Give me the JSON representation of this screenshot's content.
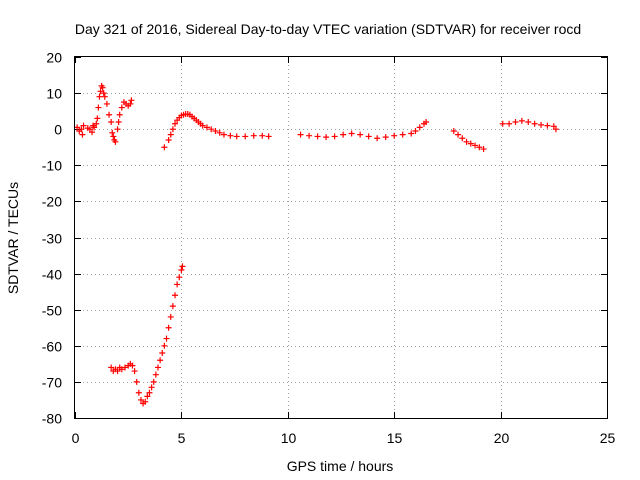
{
  "chart_data": {
    "type": "scatter",
    "title": "Day 321 of 2016, Sidereal Day-to-day VTEC variation (SDTVAR) for receiver rocd",
    "xlabel": "GPS time / hours",
    "ylabel": "SDTVAR / TECUs",
    "xlim": [
      0,
      25
    ],
    "ylim": [
      -80,
      20
    ],
    "x_ticks": [
      0,
      5,
      10,
      15,
      20,
      25
    ],
    "y_ticks": [
      20,
      10,
      0,
      -10,
      -20,
      -30,
      -40,
      -50,
      -60,
      -70,
      -80
    ],
    "grid": true,
    "marker": "+",
    "color": "#ff0000",
    "series": [
      {
        "name": "SDTVAR",
        "points": [
          [
            0.1,
            0.5
          ],
          [
            0.2,
            -0.5
          ],
          [
            0.3,
            0
          ],
          [
            0.35,
            -1.5
          ],
          [
            0.4,
            1
          ],
          [
            0.6,
            0.3
          ],
          [
            0.7,
            0
          ],
          [
            0.8,
            -0.8
          ],
          [
            0.85,
            1
          ],
          [
            0.9,
            0.5
          ],
          [
            1.0,
            1.5
          ],
          [
            1.05,
            3
          ],
          [
            1.1,
            6
          ],
          [
            1.15,
            9
          ],
          [
            1.2,
            10.5
          ],
          [
            1.25,
            12
          ],
          [
            1.3,
            11.5
          ],
          [
            1.35,
            10
          ],
          [
            1.4,
            9
          ],
          [
            1.5,
            7
          ],
          [
            1.6,
            4
          ],
          [
            1.7,
            2
          ],
          [
            1.75,
            -1
          ],
          [
            1.8,
            -2
          ],
          [
            1.85,
            -3
          ],
          [
            1.9,
            -3.5
          ],
          [
            2.0,
            0
          ],
          [
            2.05,
            2
          ],
          [
            2.1,
            4
          ],
          [
            2.2,
            6
          ],
          [
            2.3,
            7.5
          ],
          [
            2.4,
            7
          ],
          [
            2.5,
            6.5
          ],
          [
            2.6,
            7
          ],
          [
            2.65,
            8
          ],
          [
            1.7,
            -66
          ],
          [
            1.8,
            -67
          ],
          [
            1.9,
            -66.5
          ],
          [
            2.0,
            -67
          ],
          [
            2.1,
            -66
          ],
          [
            2.2,
            -66.5
          ],
          [
            2.35,
            -66
          ],
          [
            2.5,
            -65.5
          ],
          [
            2.6,
            -65
          ],
          [
            2.7,
            -65.5
          ],
          [
            2.8,
            -67
          ],
          [
            2.9,
            -70
          ],
          [
            3.0,
            -73
          ],
          [
            3.1,
            -75
          ],
          [
            3.2,
            -76
          ],
          [
            3.3,
            -75.5
          ],
          [
            3.4,
            -74
          ],
          [
            3.5,
            -73
          ],
          [
            3.6,
            -71.5
          ],
          [
            3.7,
            -70
          ],
          [
            3.8,
            -68
          ],
          [
            3.9,
            -66
          ],
          [
            4.0,
            -64
          ],
          [
            4.1,
            -62
          ],
          [
            4.2,
            -60
          ],
          [
            4.3,
            -58
          ],
          [
            4.4,
            -55
          ],
          [
            4.5,
            -52
          ],
          [
            4.6,
            -49
          ],
          [
            4.7,
            -46
          ],
          [
            4.8,
            -43
          ],
          [
            4.9,
            -41
          ],
          [
            5.0,
            -39
          ],
          [
            5.05,
            -38
          ],
          [
            4.2,
            -5
          ],
          [
            4.4,
            -3
          ],
          [
            4.5,
            -1.5
          ],
          [
            4.6,
            0
          ],
          [
            4.7,
            1.5
          ],
          [
            4.8,
            2.5
          ],
          [
            4.9,
            3.2
          ],
          [
            5.0,
            3.8
          ],
          [
            5.1,
            4
          ],
          [
            5.2,
            4.2
          ],
          [
            5.3,
            4.2
          ],
          [
            5.4,
            4
          ],
          [
            5.5,
            3.5
          ],
          [
            5.6,
            3
          ],
          [
            5.7,
            2.5
          ],
          [
            5.8,
            2
          ],
          [
            5.9,
            1.5
          ],
          [
            6.0,
            1
          ],
          [
            6.2,
            0.5
          ],
          [
            6.4,
            0
          ],
          [
            6.6,
            -0.5
          ],
          [
            6.8,
            -1
          ],
          [
            7.0,
            -1.5
          ],
          [
            7.3,
            -1.8
          ],
          [
            7.6,
            -2
          ],
          [
            8.0,
            -2
          ],
          [
            8.4,
            -1.8
          ],
          [
            8.8,
            -1.8
          ],
          [
            9.1,
            -2
          ],
          [
            10.6,
            -1.5
          ],
          [
            11.0,
            -1.8
          ],
          [
            11.4,
            -2
          ],
          [
            11.8,
            -2.2
          ],
          [
            12.2,
            -2
          ],
          [
            12.6,
            -1.5
          ],
          [
            13.0,
            -1.2
          ],
          [
            13.4,
            -1.5
          ],
          [
            13.8,
            -2
          ],
          [
            14.2,
            -2.5
          ],
          [
            14.6,
            -2.2
          ],
          [
            15.0,
            -1.8
          ],
          [
            15.4,
            -1.5
          ],
          [
            15.8,
            -1.2
          ],
          [
            16.0,
            -0.5
          ],
          [
            16.2,
            0.5
          ],
          [
            16.4,
            1.5
          ],
          [
            16.5,
            2
          ],
          [
            17.8,
            -0.5
          ],
          [
            18.0,
            -1.5
          ],
          [
            18.2,
            -2.5
          ],
          [
            18.4,
            -3.5
          ],
          [
            18.6,
            -4
          ],
          [
            18.8,
            -4.5
          ],
          [
            19.0,
            -5
          ],
          [
            19.2,
            -5.5
          ],
          [
            20.1,
            1.5
          ],
          [
            20.4,
            1.5
          ],
          [
            20.7,
            2
          ],
          [
            21.0,
            2.3
          ],
          [
            21.3,
            2
          ],
          [
            21.6,
            1.5
          ],
          [
            21.9,
            1.2
          ],
          [
            22.2,
            1
          ],
          [
            22.5,
            0.8
          ],
          [
            22.6,
            0
          ]
        ]
      }
    ]
  }
}
